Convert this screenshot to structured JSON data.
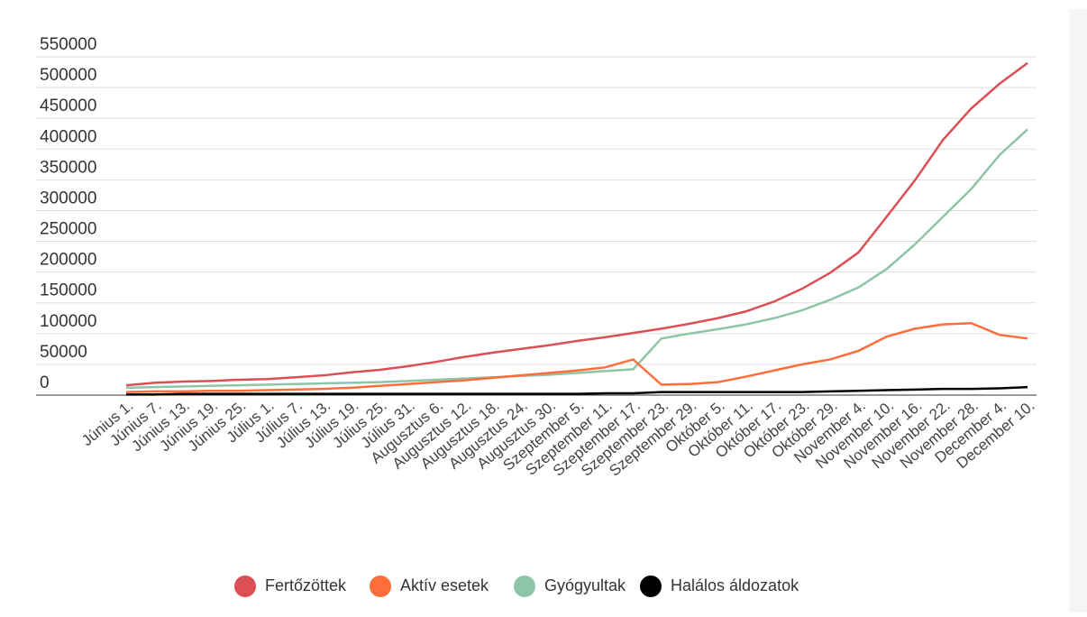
{
  "chart_data": {
    "type": "line",
    "categories": [
      "Június 1.",
      "Június 7.",
      "Június 13.",
      "Június 19.",
      "Június 25.",
      "Július 1.",
      "Július 7.",
      "Július 13.",
      "Július 19.",
      "Július 25.",
      "Július 31.",
      "Augusztus 6.",
      "Augusztus 12.",
      "Augusztus 18.",
      "Augusztus 24.",
      "Augusztus 30.",
      "Szeptember 5.",
      "Szeptember 11.",
      "Szeptember 17.",
      "Szeptember 23.",
      "Szeptember 29.",
      "Október 5.",
      "Október 11.",
      "Október 17.",
      "Október 23.",
      "Október 29.",
      "November 4.",
      "November 10.",
      "November 16.",
      "November 22.",
      "November 28.",
      "December 4.",
      "December 10."
    ],
    "series": [
      {
        "name": "Fertőzöttek",
        "color": "#db4f55",
        "values": [
          16000,
          20000,
          22000,
          23000,
          25000,
          26000,
          29000,
          32000,
          37000,
          41000,
          47000,
          54000,
          62000,
          69000,
          75000,
          81000,
          88000,
          94000,
          101000,
          108000,
          116000,
          125000,
          136000,
          152000,
          173000,
          199000,
          232000,
          290000,
          349000,
          415000,
          466000,
          506000,
          540000
        ]
      },
      {
        "name": "Aktív esetek",
        "color": "#ff6d3b",
        "values": [
          5000,
          6000,
          6000,
          7000,
          7000,
          8000,
          9000,
          10000,
          12000,
          15000,
          18000,
          21000,
          24000,
          28000,
          32000,
          36000,
          40000,
          45000,
          58000,
          17000,
          18000,
          21000,
          30000,
          40000,
          50000,
          58000,
          72000,
          95000,
          108000,
          115000,
          117000,
          98000,
          92000
        ]
      },
      {
        "name": "Gyógyultak",
        "color": "#8ec5a8",
        "values": [
          12000,
          13000,
          14000,
          15000,
          16000,
          17000,
          18000,
          19000,
          20000,
          21000,
          23000,
          25000,
          27000,
          29000,
          31000,
          33000,
          36000,
          39000,
          42000,
          92000,
          100000,
          107000,
          115000,
          125000,
          138000,
          155000,
          175000,
          205000,
          245000,
          290000,
          335000,
          390000,
          432000
        ]
      },
      {
        "name": "Halálos áldozatok",
        "color": "#000000",
        "values": [
          1000,
          1000,
          2000,
          2000,
          2000,
          2000,
          2000,
          2000,
          2000,
          2000,
          2000,
          2000,
          2000,
          2000,
          2000,
          2000,
          2000,
          3000,
          3000,
          5000,
          5000,
          5000,
          5000,
          5000,
          5000,
          6000,
          7000,
          8000,
          9000,
          10000,
          10000,
          11000,
          13000
        ]
      }
    ],
    "ylim": [
      0,
      550000
    ],
    "yticks": [
      0,
      50000,
      100000,
      150000,
      200000,
      250000,
      300000,
      350000,
      400000,
      450000,
      500000,
      550000
    ],
    "grid": true,
    "legend": "bottom"
  }
}
